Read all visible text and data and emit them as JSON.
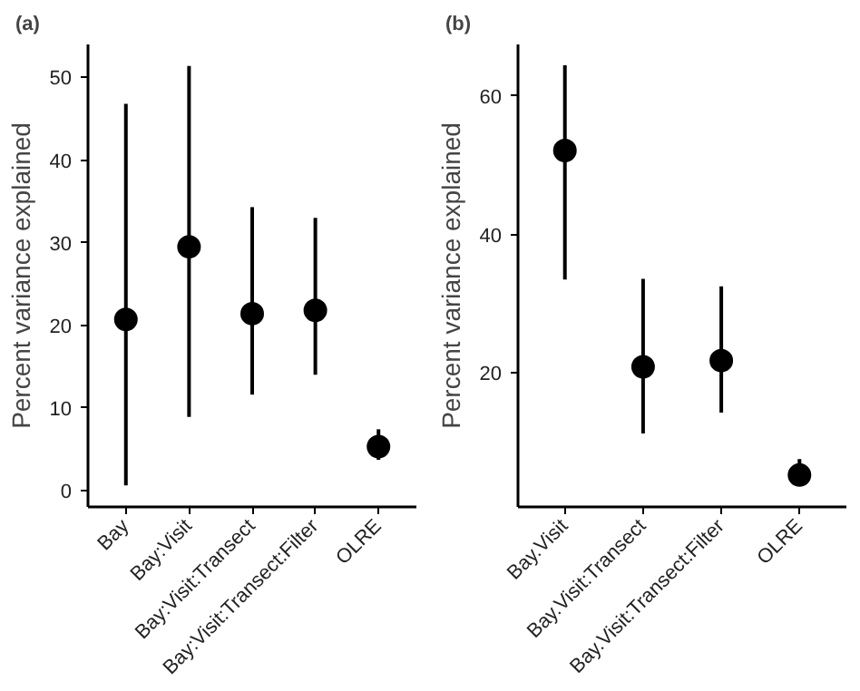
{
  "chart_data": [
    {
      "type": "scatter",
      "title": "(a)",
      "ylabel": "Percent variance explained",
      "categories": [
        "Bay",
        "Bay:Visit",
        "Bay:Visit:Transect",
        "Bay:Visit:Transect:Filter",
        "OLRE"
      ],
      "series": [
        {
          "color": "#000000",
          "values": [
            20.7,
            29.5,
            21.4,
            21.8,
            5.3
          ],
          "errors": [
            [
              0.6,
              46.8
            ],
            [
              8.9,
              51.4
            ],
            [
              11.6,
              34.3
            ],
            [
              14.0,
              33.0
            ],
            [
              3.7,
              7.4
            ]
          ]
        }
      ],
      "ylim": [
        -2,
        54
      ],
      "yticks": [
        0,
        10,
        20,
        30,
        40,
        50
      ],
      "marker": "circle",
      "grid": false
    },
    {
      "type": "scatter",
      "title": "(b)",
      "ylabel": "Percent variance explained",
      "categories": [
        "Bay.Visit",
        "Bay.Visit:Transect",
        "Bay.Visit:Transect:Filter",
        "OLRE"
      ],
      "series": [
        {
          "color": "#000000",
          "values": [
            52.1,
            20.9,
            21.8,
            5.3
          ],
          "errors": [
            [
              33.5,
              64.4
            ],
            [
              11.3,
              33.6
            ],
            [
              14.3,
              32.5
            ],
            [
              3.8,
              7.6
            ]
          ]
        }
      ],
      "ylim": [
        0.7,
        67.4
      ],
      "yticks": [
        20,
        40,
        60
      ],
      "marker": "circle",
      "grid": false
    }
  ]
}
